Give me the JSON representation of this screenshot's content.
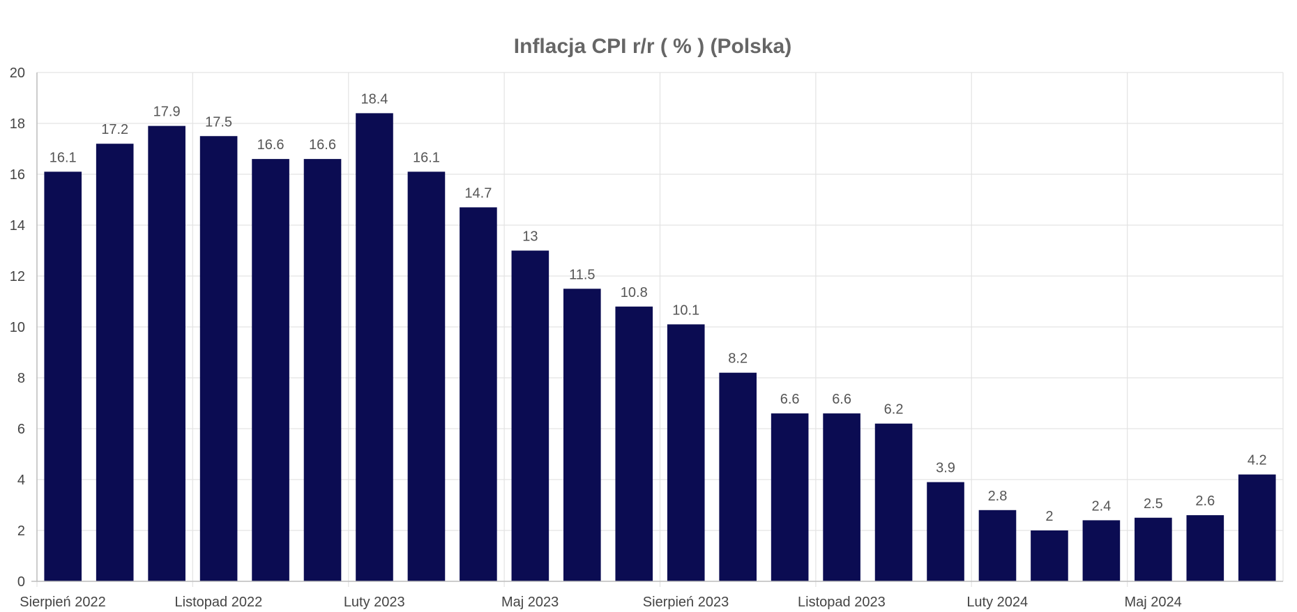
{
  "chart_data": {
    "type": "bar",
    "title": "Inflacja CPI r/r ( % ) (Polska)",
    "xlabel": "",
    "ylabel": "",
    "ylim": [
      0,
      20
    ],
    "y_ticks": [
      "0",
      "2",
      "4",
      "6",
      "8",
      "10",
      "12",
      "14",
      "16",
      "18",
      "20"
    ],
    "x_tick_labels": [
      {
        "index": 0,
        "label": "Sierpień 2022"
      },
      {
        "index": 3,
        "label": "Listopad 2022"
      },
      {
        "index": 6,
        "label": "Luty 2023"
      },
      {
        "index": 9,
        "label": "Maj 2023"
      },
      {
        "index": 12,
        "label": "Sierpień 2023"
      },
      {
        "index": 15,
        "label": "Listopad 2023"
      },
      {
        "index": 18,
        "label": "Luty 2024"
      },
      {
        "index": 21,
        "label": "Maj 2024"
      }
    ],
    "values": [
      16.1,
      17.2,
      17.9,
      17.5,
      16.6,
      16.6,
      18.4,
      16.1,
      14.7,
      13,
      11.5,
      10.8,
      10.1,
      8.2,
      6.6,
      6.6,
      6.2,
      3.9,
      2.8,
      2,
      2.4,
      2.5,
      2.6,
      4.2
    ],
    "value_labels": [
      "16.1",
      "17.2",
      "17.9",
      "17.5",
      "16.6",
      "16.6",
      "18.4",
      "16.1",
      "14.7",
      "13",
      "11.5",
      "10.8",
      "10.1",
      "8.2",
      "6.6",
      "6.6",
      "6.2",
      "3.9",
      "2.8",
      "2",
      "2.4",
      "2.5",
      "2.6",
      "4.2"
    ],
    "bar_color": "#0b0c52",
    "grid": true,
    "legend": "none"
  }
}
